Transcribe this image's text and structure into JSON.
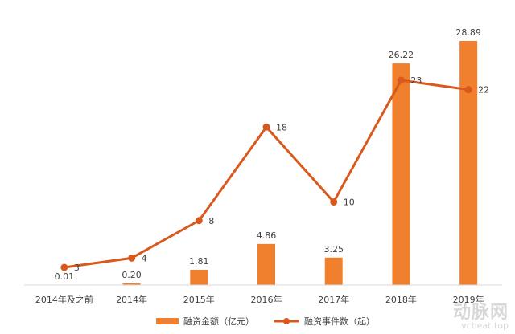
{
  "chart_data": {
    "type": "bar+line",
    "categories": [
      "2014年及之前",
      "2014年",
      "2015年",
      "2016年",
      "2017年",
      "2018年",
      "2019年"
    ],
    "series": [
      {
        "name": "融资金额（亿元）",
        "kind": "bar",
        "color": "#f07f2e",
        "values": [
          0.01,
          0.2,
          1.81,
          4.86,
          3.25,
          26.22,
          28.89
        ],
        "labels": [
          "0.01",
          "0.20",
          "1.81",
          "4.86",
          "3.25",
          "26.22",
          "28.89"
        ]
      },
      {
        "name": "融资事件数（起）",
        "kind": "line",
        "color": "#d9581c",
        "values": [
          3,
          4,
          8,
          18,
          10,
          23,
          22
        ],
        "labels": [
          "3",
          "4",
          "8",
          "18",
          "10",
          "23",
          "22"
        ]
      }
    ],
    "legend_position": "bottom",
    "grid": false
  },
  "watermark": {
    "logo": "动脉网",
    "url": "vcbeat.top"
  }
}
